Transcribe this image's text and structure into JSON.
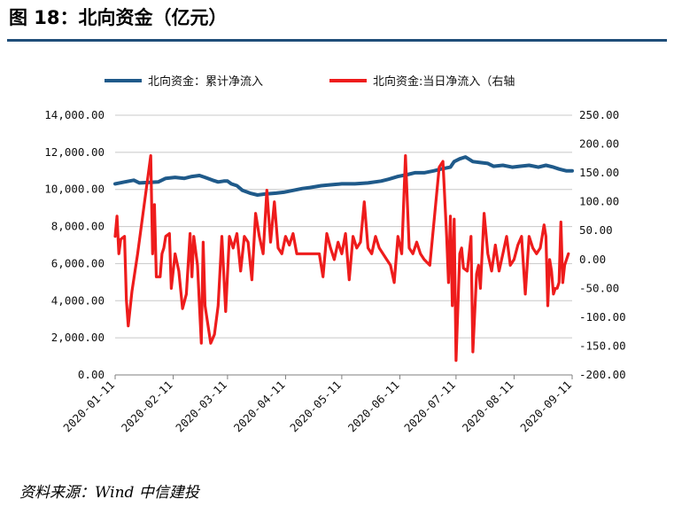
{
  "figure_title": "图 18：北向资金（亿元）",
  "source_note": "资料来源：Wind 中信建投",
  "chart_data": {
    "type": "line",
    "title": "图 18：北向资金（亿元）",
    "grid": true,
    "legend_position": "top",
    "left_axis": {
      "range": [
        0,
        14000
      ],
      "ticks": [
        0,
        2000,
        4000,
        6000,
        8000,
        10000,
        12000,
        14000
      ],
      "tick_labels": [
        "0.00",
        "2,000.00",
        "4,000.00",
        "6,000.00",
        "8,000.00",
        "10,000.00",
        "12,000.00",
        "14,000.00"
      ]
    },
    "right_axis": {
      "range": [
        -200,
        250
      ],
      "ticks": [
        -200,
        -150,
        -100,
        -50,
        0,
        50,
        100,
        150,
        200,
        250
      ],
      "tick_labels": [
        "-200.00",
        "-150.00",
        "-100.00",
        "-50.00",
        "0.00",
        "50.00",
        "100.00",
        "150.00",
        "200.00",
        "250.00"
      ]
    },
    "x_axis": {
      "range": [
        "2020-01-11",
        "2020-09-11"
      ],
      "tick_dates": [
        "2020-01-11",
        "2020-02-11",
        "2020-03-11",
        "2020-04-11",
        "2020-05-11",
        "2020-06-11",
        "2020-07-11",
        "2020-08-11",
        "2020-09-11"
      ],
      "tick_labels": [
        "2020-01-11",
        "2020-02-11",
        "2020-03-11",
        "2020-04-11",
        "2020-05-11",
        "2020-06-11",
        "2020-07-11",
        "2020-08-11",
        "2020-09-11"
      ]
    },
    "series": [
      {
        "name": "北向资金：累计净流入",
        "axis": "left",
        "color": "#1f5a8a",
        "points": [
          [
            "2020-01-11",
            10300
          ],
          [
            "2020-01-16",
            10400
          ],
          [
            "2020-01-21",
            10500
          ],
          [
            "2020-01-24",
            10350
          ],
          [
            "2020-02-03",
            10400
          ],
          [
            "2020-02-07",
            10600
          ],
          [
            "2020-02-12",
            10650
          ],
          [
            "2020-02-17",
            10600
          ],
          [
            "2020-02-21",
            10700
          ],
          [
            "2020-02-25",
            10750
          ],
          [
            "2020-02-28",
            10650
          ],
          [
            "2020-03-03",
            10500
          ],
          [
            "2020-03-06",
            10400
          ],
          [
            "2020-03-09",
            10450
          ],
          [
            "2020-03-11",
            10450
          ],
          [
            "2020-03-13",
            10300
          ],
          [
            "2020-03-16",
            10200
          ],
          [
            "2020-03-19",
            9950
          ],
          [
            "2020-03-23",
            9800
          ],
          [
            "2020-03-27",
            9700
          ],
          [
            "2020-03-31",
            9750
          ],
          [
            "2020-04-06",
            9800
          ],
          [
            "2020-04-10",
            9850
          ],
          [
            "2020-04-15",
            9950
          ],
          [
            "2020-04-20",
            10050
          ],
          [
            "2020-04-24",
            10100
          ],
          [
            "2020-04-30",
            10200
          ],
          [
            "2020-05-05",
            10250
          ],
          [
            "2020-05-11",
            10300
          ],
          [
            "2020-05-18",
            10300
          ],
          [
            "2020-05-25",
            10350
          ],
          [
            "2020-06-01",
            10450
          ],
          [
            "2020-06-05",
            10550
          ],
          [
            "2020-06-10",
            10700
          ],
          [
            "2020-06-15",
            10800
          ],
          [
            "2020-06-19",
            10900
          ],
          [
            "2020-06-24",
            10900
          ],
          [
            "2020-06-29",
            11000
          ],
          [
            "2020-07-03",
            11100
          ],
          [
            "2020-07-08",
            11200
          ],
          [
            "2020-07-10",
            11500
          ],
          [
            "2020-07-13",
            11650
          ],
          [
            "2020-07-16",
            11750
          ],
          [
            "2020-07-20",
            11500
          ],
          [
            "2020-07-24",
            11450
          ],
          [
            "2020-07-28",
            11400
          ],
          [
            "2020-07-31",
            11250
          ],
          [
            "2020-08-05",
            11300
          ],
          [
            "2020-08-10",
            11200
          ],
          [
            "2020-08-14",
            11250
          ],
          [
            "2020-08-19",
            11300
          ],
          [
            "2020-08-24",
            11200
          ],
          [
            "2020-08-28",
            11300
          ],
          [
            "2020-09-01",
            11200
          ],
          [
            "2020-09-04",
            11100
          ],
          [
            "2020-09-08",
            11000
          ],
          [
            "2020-09-11",
            11000
          ]
        ]
      },
      {
        "name": "北向资金:当日净流入（右轴",
        "axis": "right",
        "color": "#ee1c1c",
        "points": [
          [
            "2020-01-11",
            40
          ],
          [
            "2020-01-12",
            75
          ],
          [
            "2020-01-13",
            10
          ],
          [
            "2020-01-14",
            35
          ],
          [
            "2020-01-16",
            40
          ],
          [
            "2020-01-17",
            -70
          ],
          [
            "2020-01-18",
            -115
          ],
          [
            "2020-01-20",
            -55
          ],
          [
            "2020-01-23",
            10
          ],
          [
            "2020-01-30",
            180
          ],
          [
            "2020-01-31",
            10
          ],
          [
            "2020-02-01",
            95
          ],
          [
            "2020-02-02",
            -30
          ],
          [
            "2020-02-04",
            -30
          ],
          [
            "2020-02-05",
            10
          ],
          [
            "2020-02-06",
            20
          ],
          [
            "2020-02-07",
            40
          ],
          [
            "2020-02-09",
            45
          ],
          [
            "2020-02-10",
            -50
          ],
          [
            "2020-02-12",
            10
          ],
          [
            "2020-02-14",
            -20
          ],
          [
            "2020-02-16",
            -85
          ],
          [
            "2020-02-18",
            -60
          ],
          [
            "2020-02-20",
            45
          ],
          [
            "2020-02-21",
            -30
          ],
          [
            "2020-02-22",
            40
          ],
          [
            "2020-02-24",
            -10
          ],
          [
            "2020-02-26",
            -145
          ],
          [
            "2020-02-27",
            30
          ],
          [
            "2020-02-28",
            -80
          ],
          [
            "2020-03-02",
            -145
          ],
          [
            "2020-03-04",
            -130
          ],
          [
            "2020-03-06",
            -80
          ],
          [
            "2020-03-08",
            40
          ],
          [
            "2020-03-10",
            -90
          ],
          [
            "2020-03-12",
            40
          ],
          [
            "2020-03-14",
            20
          ],
          [
            "2020-03-16",
            45
          ],
          [
            "2020-03-18",
            -20
          ],
          [
            "2020-03-20",
            40
          ],
          [
            "2020-03-22",
            30
          ],
          [
            "2020-03-24",
            -35
          ],
          [
            "2020-03-26",
            80
          ],
          [
            "2020-03-28",
            40
          ],
          [
            "2020-03-30",
            10
          ],
          [
            "2020-04-01",
            120
          ],
          [
            "2020-04-03",
            30
          ],
          [
            "2020-04-05",
            100
          ],
          [
            "2020-04-07",
            20
          ],
          [
            "2020-04-09",
            10
          ],
          [
            "2020-04-11",
            40
          ],
          [
            "2020-04-13",
            25
          ],
          [
            "2020-04-15",
            45
          ],
          [
            "2020-04-17",
            10
          ],
          [
            "2020-04-19",
            10
          ],
          [
            "2020-04-21",
            10
          ],
          [
            "2020-04-23",
            10
          ],
          [
            "2020-04-25",
            10
          ],
          [
            "2020-04-27",
            10
          ],
          [
            "2020-04-29",
            10
          ],
          [
            "2020-05-01",
            -30
          ],
          [
            "2020-05-03",
            45
          ],
          [
            "2020-05-05",
            20
          ],
          [
            "2020-05-07",
            0
          ],
          [
            "2020-05-09",
            30
          ],
          [
            "2020-05-11",
            10
          ],
          [
            "2020-05-13",
            45
          ],
          [
            "2020-05-15",
            -35
          ],
          [
            "2020-05-17",
            40
          ],
          [
            "2020-05-19",
            20
          ],
          [
            "2020-05-21",
            30
          ],
          [
            "2020-05-23",
            100
          ],
          [
            "2020-05-25",
            20
          ],
          [
            "2020-05-27",
            10
          ],
          [
            "2020-05-29",
            40
          ],
          [
            "2020-05-31",
            20
          ],
          [
            "2020-06-02",
            10
          ],
          [
            "2020-06-04",
            0
          ],
          [
            "2020-06-06",
            -10
          ],
          [
            "2020-06-08",
            -40
          ],
          [
            "2020-06-10",
            40
          ],
          [
            "2020-06-12",
            10
          ],
          [
            "2020-06-14",
            180
          ],
          [
            "2020-06-16",
            20
          ],
          [
            "2020-06-18",
            10
          ],
          [
            "2020-06-20",
            30
          ],
          [
            "2020-06-22",
            10
          ],
          [
            "2020-06-24",
            0
          ],
          [
            "2020-06-27",
            -10
          ],
          [
            "2020-07-02",
            160
          ],
          [
            "2020-07-04",
            170
          ],
          [
            "2020-07-06",
            40
          ],
          [
            "2020-07-07",
            -40
          ],
          [
            "2020-07-08",
            75
          ],
          [
            "2020-07-09",
            -80
          ],
          [
            "2020-07-10",
            70
          ],
          [
            "2020-07-11",
            -175
          ],
          [
            "2020-07-13",
            10
          ],
          [
            "2020-07-14",
            20
          ],
          [
            "2020-07-15",
            -15
          ],
          [
            "2020-07-17",
            -20
          ],
          [
            "2020-07-19",
            40
          ],
          [
            "2020-07-20",
            -160
          ],
          [
            "2020-07-22",
            -25
          ],
          [
            "2020-07-23",
            -10
          ],
          [
            "2020-07-24",
            -50
          ],
          [
            "2020-07-26",
            80
          ],
          [
            "2020-07-28",
            10
          ],
          [
            "2020-07-30",
            -20
          ],
          [
            "2020-08-01",
            25
          ],
          [
            "2020-08-03",
            -20
          ],
          [
            "2020-08-05",
            10
          ],
          [
            "2020-08-07",
            40
          ],
          [
            "2020-08-09",
            -10
          ],
          [
            "2020-08-11",
            0
          ],
          [
            "2020-08-13",
            25
          ],
          [
            "2020-08-15",
            40
          ],
          [
            "2020-08-17",
            -60
          ],
          [
            "2020-08-19",
            40
          ],
          [
            "2020-08-21",
            20
          ],
          [
            "2020-08-23",
            10
          ],
          [
            "2020-08-25",
            20
          ],
          [
            "2020-08-27",
            60
          ],
          [
            "2020-08-28",
            40
          ],
          [
            "2020-08-29",
            -80
          ],
          [
            "2020-08-30",
            0
          ],
          [
            "2020-08-31",
            -20
          ],
          [
            "2020-09-01",
            -60
          ],
          [
            "2020-09-02",
            -50
          ],
          [
            "2020-09-03",
            -50
          ],
          [
            "2020-09-04",
            -40
          ],
          [
            "2020-09-05",
            65
          ],
          [
            "2020-09-06",
            -40
          ],
          [
            "2020-09-07",
            -10
          ],
          [
            "2020-09-09",
            10
          ]
        ]
      }
    ]
  }
}
